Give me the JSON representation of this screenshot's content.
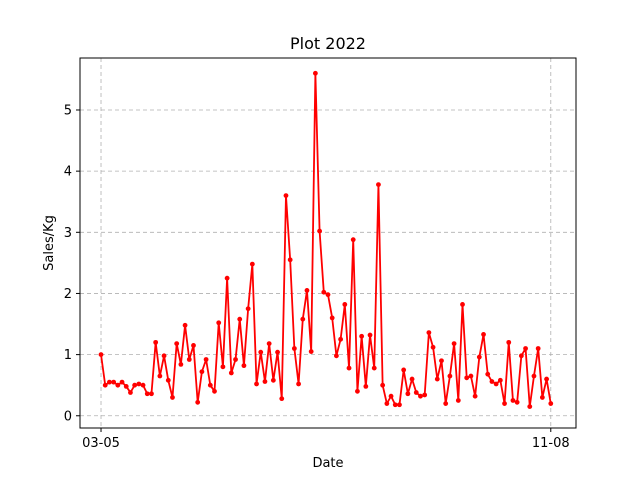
{
  "chart_data": {
    "type": "line",
    "title": "Plot 2022",
    "xlabel": "Date",
    "ylabel": "Sales/Kg",
    "x_tick_labels": [
      "03-05",
      "11-08"
    ],
    "y_ticks": [
      0,
      1,
      2,
      3,
      4,
      5
    ],
    "xlim": [
      -5,
      113
    ],
    "ylim": [
      -0.2,
      5.85
    ],
    "grid": true,
    "series_color": "#ff0000",
    "series": [
      {
        "values": [
          1.0,
          0.5,
          0.55,
          0.55,
          0.5,
          0.55,
          0.48,
          0.38,
          0.5,
          0.52,
          0.5,
          0.36,
          0.36,
          1.2,
          0.65,
          0.98,
          0.58,
          0.3,
          1.18,
          0.84,
          1.48,
          0.92,
          1.15,
          0.22,
          0.72,
          0.92,
          0.5,
          0.4,
          1.52,
          0.8,
          2.25,
          0.7,
          0.92,
          1.58,
          0.82,
          1.75,
          2.48,
          0.52,
          1.04,
          0.56,
          1.18,
          0.58,
          1.04,
          0.28,
          3.6,
          2.55,
          1.1,
          0.52,
          1.58,
          2.05,
          1.05,
          5.6,
          3.02,
          2.02,
          1.98,
          1.6,
          0.98,
          1.25,
          1.82,
          0.78,
          2.88,
          0.4,
          1.3,
          0.48,
          1.32,
          0.78,
          3.78,
          0.5,
          0.2,
          0.32,
          0.18,
          0.18,
          0.75,
          0.36,
          0.6,
          0.38,
          0.32,
          0.34,
          1.36,
          1.12,
          0.6,
          0.9,
          0.2,
          0.65,
          1.18,
          0.25,
          1.82,
          0.62,
          0.65,
          0.32,
          0.96,
          1.33,
          0.68,
          0.56,
          0.52,
          0.58,
          0.2,
          1.2,
          0.25,
          0.22,
          0.98,
          1.1,
          0.15,
          0.65,
          1.1,
          0.3,
          0.6,
          0.2
        ]
      }
    ]
  }
}
